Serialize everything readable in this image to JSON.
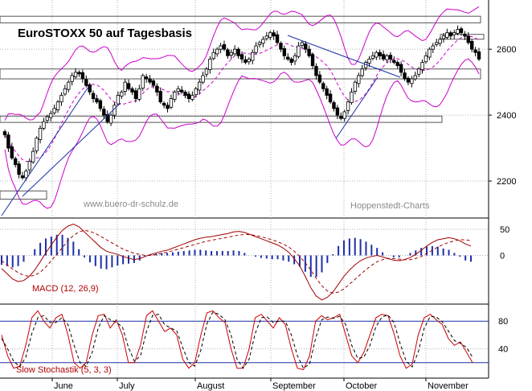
{
  "chart_data": [
    {
      "type": "candlestick",
      "title": "EuroSTOXX 50 auf Tagesbasis",
      "watermark_left": "www.buero-dr-schulz.de",
      "watermark_right": "Hoppenstedt-Charts",
      "x": [
        "June",
        "July",
        "August",
        "September",
        "October",
        "November"
      ],
      "ylim": [
        2100,
        2720
      ],
      "yticks": [
        2200,
        2400,
        2600
      ],
      "grid": true,
      "closes": [
        2340,
        2300,
        2270,
        2250,
        2220,
        2210,
        2230,
        2260,
        2290,
        2330,
        2360,
        2380,
        2395,
        2405,
        2420,
        2440,
        2460,
        2480,
        2500,
        2520,
        2530,
        2525,
        2510,
        2490,
        2470,
        2450,
        2440,
        2420,
        2400,
        2380,
        2400,
        2430,
        2460,
        2470,
        2500,
        2480,
        2470,
        2450,
        2480,
        2520,
        2510,
        2500,
        2490,
        2470,
        2440,
        2430,
        2420,
        2450,
        2470,
        2480,
        2470,
        2460,
        2450,
        2460,
        2480,
        2500,
        2520,
        2540,
        2570,
        2590,
        2600,
        2610,
        2600,
        2580,
        2590,
        2600,
        2580,
        2570,
        2560,
        2570,
        2590,
        2610,
        2620,
        2630,
        2640,
        2650,
        2640,
        2620,
        2600,
        2580,
        2570,
        2560,
        2580,
        2610,
        2620,
        2600,
        2580,
        2550,
        2520,
        2500,
        2480,
        2460,
        2440,
        2420,
        2400,
        2390,
        2410,
        2440,
        2470,
        2500,
        2520,
        2540,
        2560,
        2570,
        2580,
        2590,
        2580,
        2570,
        2580,
        2570,
        2560,
        2550,
        2530,
        2510,
        2500,
        2510,
        2520,
        2540,
        2560,
        2580,
        2600,
        2610,
        2620,
        2630,
        2640,
        2650,
        2640,
        2650,
        2660,
        2650,
        2640,
        2620,
        2600,
        2590,
        2570
      ],
      "lower_band_end": [
        2430,
        2545
      ],
      "boxes": [
        {
          "y_top": 2700,
          "y_bottom": 2680
        },
        {
          "y_top": 2645,
          "y_bottom": 2635
        },
        {
          "y_top": 2540,
          "y_bottom": 2510
        },
        {
          "y_top": 2397,
          "y_bottom": 2378
        },
        {
          "y_top": 2170,
          "y_bottom": 2145
        }
      ]
    },
    {
      "type": "line",
      "label": "MACD (12, 26,9)",
      "ylim": [
        -90,
        70
      ],
      "yticks": [
        50,
        0
      ],
      "series": [
        {
          "values": [
            -25,
            -35,
            -45,
            -50,
            -48,
            -40,
            -28,
            -12,
            5,
            20,
            35,
            48,
            56,
            60,
            55,
            45,
            35,
            25,
            15,
            8,
            5,
            2,
            -2,
            -5,
            -8,
            -6,
            -2,
            2,
            5,
            8,
            10,
            14,
            18,
            22,
            26,
            30,
            33,
            35,
            36,
            38,
            40,
            42,
            45,
            46,
            44,
            40,
            36,
            32,
            28,
            24,
            20,
            14,
            6,
            -6,
            -20,
            -40,
            -62,
            -78,
            -85,
            -80,
            -70,
            -55,
            -40,
            -28,
            -18,
            -10,
            -5,
            -2,
            0,
            -3,
            -6,
            -9,
            -10,
            -8,
            -4,
            2,
            10,
            18,
            25,
            30,
            32,
            34,
            32,
            28,
            22,
            18
          ]
        },
        {
          "values": [
            -10,
            -18,
            -26,
            -33,
            -38,
            -40,
            -38,
            -32,
            -22,
            -10,
            2,
            15,
            28,
            38,
            45,
            48,
            46,
            42,
            36,
            30,
            24,
            18,
            12,
            8,
            4,
            2,
            0,
            0,
            2,
            4,
            6,
            9,
            12,
            15,
            18,
            21,
            24,
            27,
            29,
            31,
            33,
            35,
            37,
            39,
            40,
            40,
            38,
            36,
            33,
            30,
            26,
            22,
            16,
            8,
            -2,
            -14,
            -28,
            -44,
            -58,
            -68,
            -72,
            -70,
            -64,
            -55,
            -46,
            -36,
            -27,
            -19,
            -12,
            -8,
            -6,
            -6,
            -7,
            -8,
            -8,
            -6,
            -2,
            4,
            10,
            16,
            21,
            25,
            28,
            30,
            30,
            28
          ]
        }
      ]
    },
    {
      "type": "line",
      "label": "Slow Stochastik (5, 3, 3)",
      "ylim": [
        0,
        100
      ],
      "yticks": [
        80,
        40
      ],
      "series": [
        {
          "values": [
            60,
            30,
            12,
            15,
            45,
            85,
            95,
            80,
            70,
            85,
            90,
            60,
            20,
            12,
            20,
            60,
            88,
            90,
            70,
            82,
            60,
            20,
            20,
            45,
            88,
            95,
            80,
            65,
            70,
            60,
            25,
            12,
            20,
            60,
            92,
            95,
            85,
            78,
            40,
            12,
            12,
            40,
            85,
            90,
            80,
            70,
            85,
            75,
            40,
            12,
            10,
            30,
            80,
            88,
            82,
            85,
            90,
            60,
            30,
            20,
            35,
            60,
            85,
            90,
            88,
            62,
            30,
            12,
            18,
            60,
            85,
            90,
            82,
            75,
            55,
            45,
            50,
            35,
            20
          ]
        },
        {
          "values": [
            55,
            40,
            22,
            14,
            28,
            62,
            85,
            88,
            78,
            78,
            85,
            75,
            45,
            20,
            15,
            35,
            70,
            88,
            82,
            78,
            72,
            42,
            22,
            30,
            65,
            88,
            90,
            75,
            70,
            66,
            42,
            20,
            15,
            38,
            76,
            93,
            90,
            82,
            60,
            25,
            12,
            25,
            62,
            85,
            86,
            78,
            80,
            80,
            60,
            30,
            12,
            18,
            55,
            82,
            86,
            84,
            87,
            75,
            45,
            26,
            28,
            45,
            72,
            86,
            89,
            78,
            48,
            22,
            14,
            35,
            70,
            87,
            86,
            79,
            66,
            52,
            48,
            42,
            28
          ]
        }
      ]
    }
  ]
}
